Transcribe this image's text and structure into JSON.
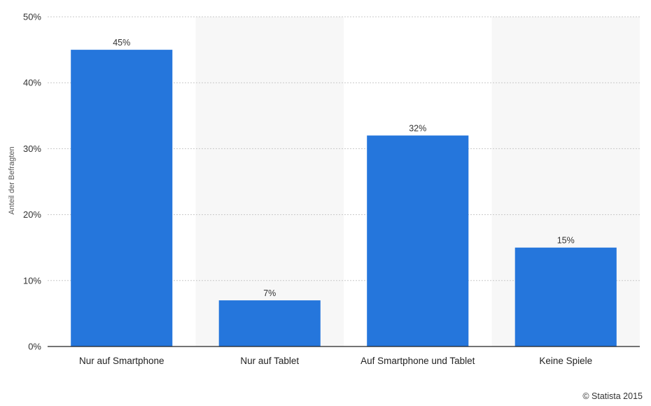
{
  "chart_data": {
    "type": "bar",
    "categories": [
      "Nur auf Smartphone",
      "Nur auf Tablet",
      "Auf Smartphone und Tablet",
      "Keine Spiele"
    ],
    "values": [
      45,
      7,
      32,
      15
    ],
    "value_labels": [
      "45%",
      "7%",
      "32%",
      "15%"
    ],
    "title": "",
    "xlabel": "",
    "ylabel": "Anteil der Befragten",
    "ylim": [
      0,
      50
    ],
    "yticks": [
      0,
      10,
      20,
      30,
      40,
      50
    ],
    "ytick_labels": [
      "0%",
      "10%",
      "20%",
      "30%",
      "40%",
      "50%"
    ],
    "grid": true,
    "bar_color": "#2576dc",
    "band_color": "#f7f7f7",
    "grid_color": "#c8c8c8"
  },
  "credit": "© Statista 2015"
}
